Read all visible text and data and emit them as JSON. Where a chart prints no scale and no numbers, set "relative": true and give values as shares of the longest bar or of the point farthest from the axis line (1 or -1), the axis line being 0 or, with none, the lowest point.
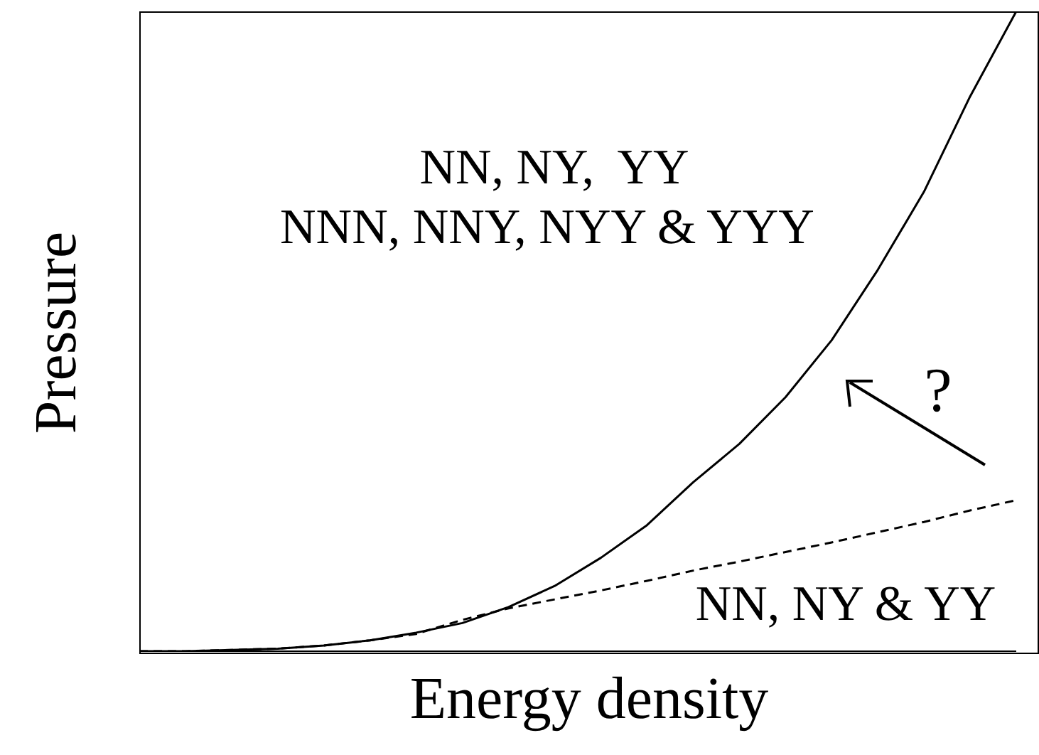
{
  "chart_data": {
    "type": "line",
    "relative": true,
    "xlabel": "Energy density",
    "ylabel": "Pressure",
    "tick_labels": false,
    "marker": "none",
    "categories": [
      null,
      null,
      null,
      null,
      null,
      null,
      null,
      null,
      null,
      null,
      null,
      null,
      null,
      null,
      null,
      null,
      null,
      null,
      null,
      null
    ],
    "series": [
      {
        "color": "#000000",
        "line_style": "solid",
        "values": [
          0,
          0,
          0.002,
          0.004,
          0.009,
          0.017,
          0.029,
          0.044,
          0.069,
          0.102,
          0.146,
          0.197,
          0.264,
          0.324,
          0.397,
          0.486,
          0.596,
          0.718,
          0.867,
          1
        ]
      },
      {
        "color": "#000000",
        "line_style": "dashed",
        "values": [
          0,
          0,
          0.002,
          0.004,
          0.009,
          0.017,
          0.027,
          0.049,
          0.067,
          0.081,
          0.095,
          0.11,
          0.126,
          0.14,
          0.155,
          0.17,
          0.186,
          0.202,
          0.22,
          0.236
        ]
      }
    ],
    "annotations": [
      "NN, NY,  YY",
      "NNN, NNY, NYY & YYY",
      "?",
      "NN, NY & YY"
    ]
  }
}
